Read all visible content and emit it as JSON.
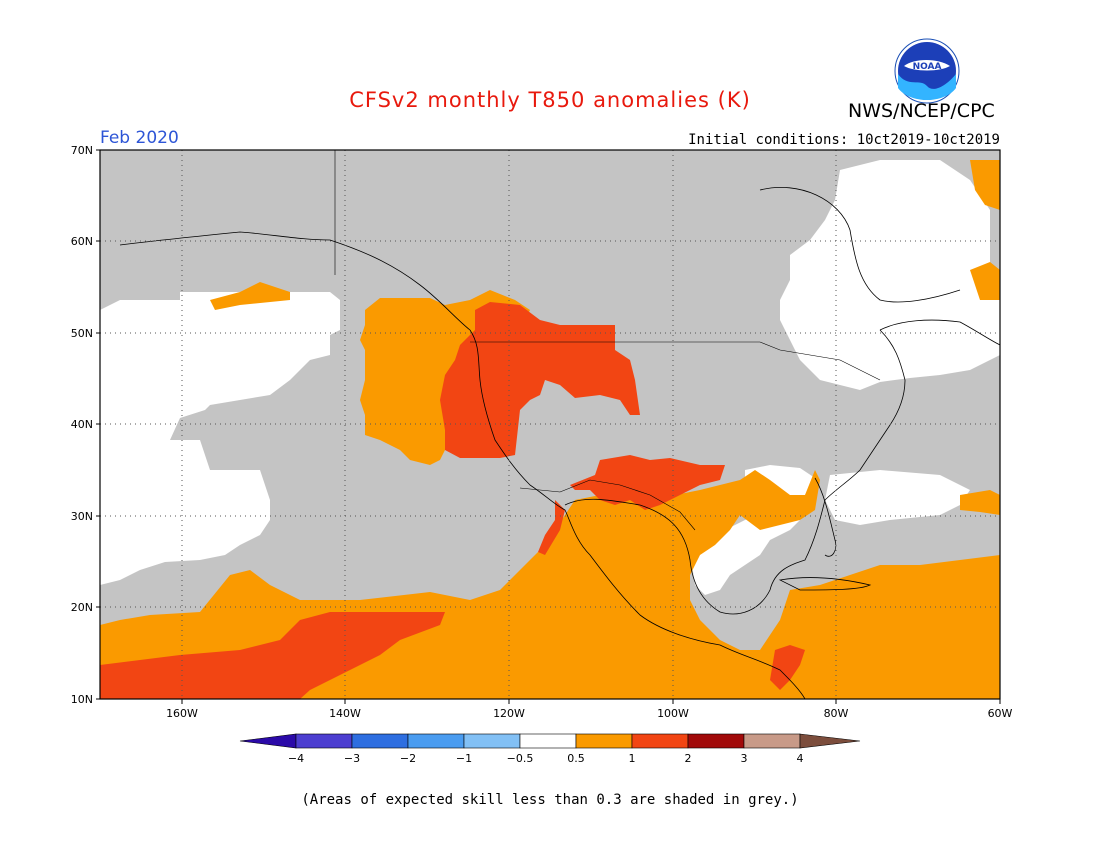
{
  "header": {
    "title": "CFSv2 monthly T850 anomalies (K)",
    "agency": "NWS/NCEP/CPC",
    "logo_text": "NOAA",
    "period": "Feb 2020",
    "initial_conditions": "Initial conditions: 10ct2019-10ct2019"
  },
  "colors": {
    "title": "#e8190d",
    "period": "#2d55d6",
    "skill_grey": "#c4c4c4",
    "neutral_white": "#ffffff",
    "c_0_5_to_1": "#fa9a00",
    "c_1_to_2": "#f24513",
    "c_2_to_3": "#a10a0a",
    "c_3_to_4": "#c89a88",
    "c_gt_4": "#7c4d3c",
    "c_neg_0_5_to_1": "#82c0f5",
    "c_neg_1_to_2": "#4a9cf0",
    "c_neg_2_to_3": "#2e6ee0",
    "c_neg_3_to_4": "#4c3ed0",
    "c_lt_neg4": "#2b0aa8"
  },
  "map": {
    "lat_labels": [
      "70N",
      "60N",
      "50N",
      "40N",
      "30N",
      "20N",
      "10N"
    ],
    "lon_labels": [
      "160W",
      "140W",
      "120W",
      "100W",
      "80W",
      "60W"
    ]
  },
  "colorbar": {
    "labels": [
      "−4",
      "−3",
      "−2",
      "−1",
      "−0.5",
      "0.5",
      "1",
      "2",
      "3",
      "4"
    ],
    "colors": [
      "#4c3ed0",
      "#2e6ee0",
      "#4a9cf0",
      "#82c0f5",
      "#ffffff",
      "#fa9a00",
      "#f24513",
      "#a10a0a",
      "#c89a88"
    ]
  },
  "footnote": "(Areas of expected skill less than 0.3 are shaded in grey.)"
}
